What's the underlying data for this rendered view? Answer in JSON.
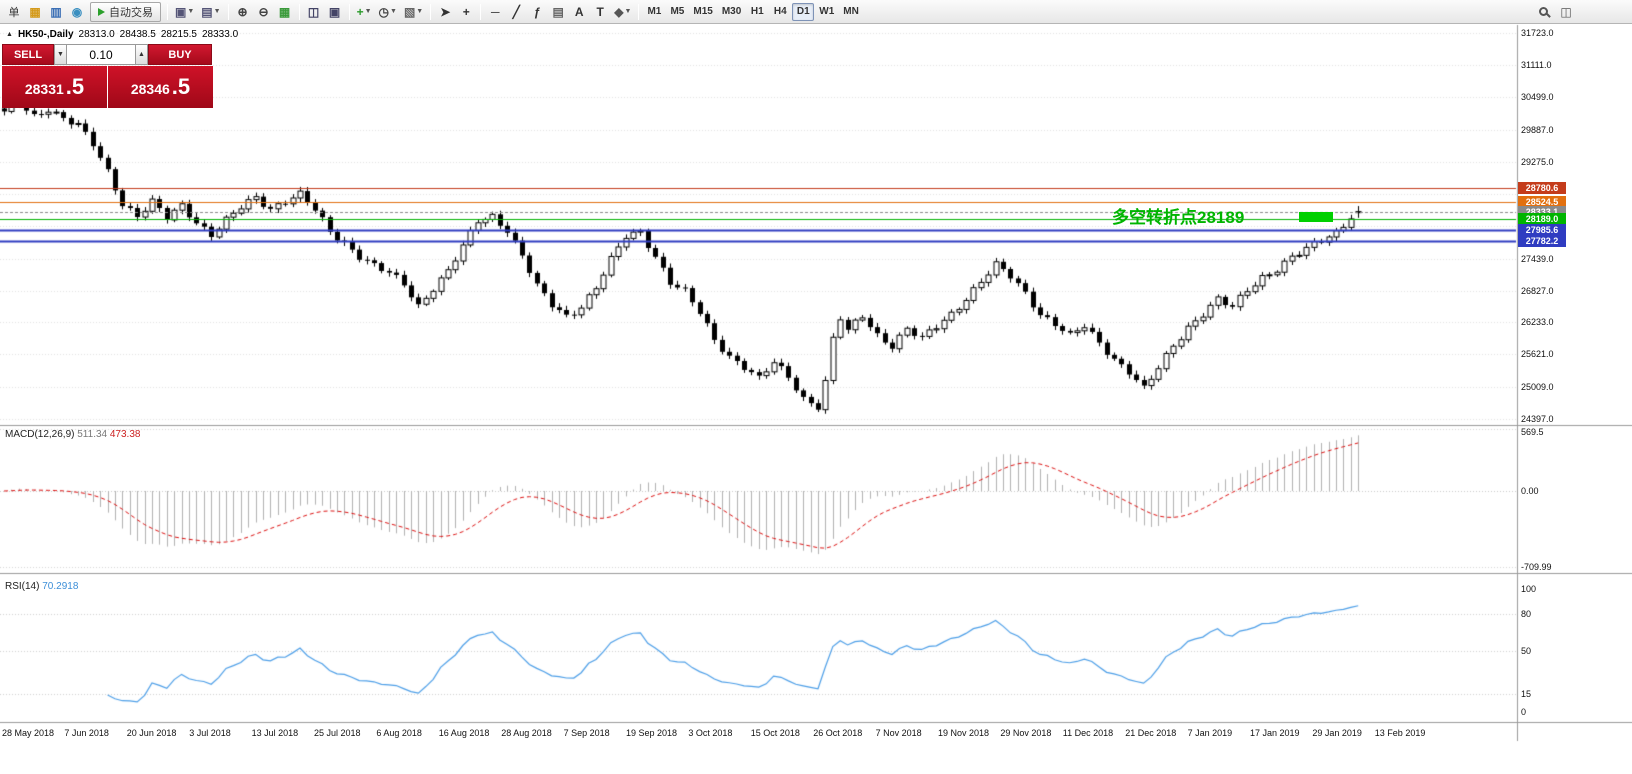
{
  "toolbar": {
    "order_button": {
      "label": "单"
    },
    "left_icons": [
      {
        "name": "accounts-icon",
        "glyph": "▦",
        "color": "#d49a1a"
      },
      {
        "name": "market-watch-icon",
        "glyph": "▥",
        "color": "#3b6fb5"
      },
      {
        "name": "refresh-icon",
        "glyph": "◉",
        "color": "#3a8fc0"
      }
    ],
    "autotrade": {
      "label": "自动交易"
    },
    "groups": [
      [
        {
          "name": "new-chart-icon",
          "glyph": "▣",
          "color": "#557",
          "dropdown": true
        },
        {
          "name": "profiles-icon",
          "glyph": "▤",
          "color": "#557",
          "dropdown": true
        }
      ],
      [
        {
          "name": "zoom-in-icon",
          "glyph": "⊕",
          "color": "#444"
        },
        {
          "name": "zoom-out-icon",
          "glyph": "⊖",
          "color": "#444"
        },
        {
          "name": "grid-icon",
          "glyph": "▦",
          "color": "#3a9a3a"
        }
      ],
      [
        {
          "name": "tile-windows-icon",
          "glyph": "◫",
          "color": "#446"
        },
        {
          "name": "cascade-windows-icon",
          "glyph": "▣",
          "color": "#446"
        }
      ],
      [
        {
          "name": "add-indicator-icon",
          "glyph": "+",
          "color": "#2a9a2a",
          "dropdown": true
        },
        {
          "name": "period-icon",
          "glyph": "◷",
          "color": "#444",
          "dropdown": true
        },
        {
          "name": "template-icon",
          "glyph": "▧",
          "color": "#666",
          "dropdown": true
        }
      ],
      [
        {
          "name": "cursor-icon",
          "glyph": "➤",
          "color": "#333"
        },
        {
          "name": "crosshair-icon",
          "glyph": "+",
          "color": "#333"
        }
      ],
      [
        {
          "name": "hline-tool-icon",
          "glyph": "─",
          "color": "#333"
        },
        {
          "name": "trendline-tool-icon",
          "glyph": "╱",
          "color": "#333"
        },
        {
          "name": "fibonacci-tool-icon",
          "glyph": "ƒ",
          "color": "#333"
        },
        {
          "name": "channel-tool-icon",
          "glyph": "▤",
          "color": "#666"
        },
        {
          "name": "text-tool-icon",
          "glyph": "A",
          "color": "#333"
        },
        {
          "name": "label-tool-icon",
          "glyph": "T",
          "color": "#333"
        },
        {
          "name": "shapes-tool-icon",
          "glyph": "◆",
          "color": "#555",
          "dropdown": true
        }
      ]
    ],
    "timeframes": [
      {
        "label": "M1"
      },
      {
        "label": "M5"
      },
      {
        "label": "M15"
      },
      {
        "label": "M30"
      },
      {
        "label": "H1"
      },
      {
        "label": "H4"
      },
      {
        "label": "D1",
        "active": true
      },
      {
        "label": "W1"
      },
      {
        "label": "MN"
      }
    ],
    "right_icons": [
      {
        "name": "search-icon",
        "type": "magnifier"
      },
      {
        "name": "data-window-icon",
        "glyph": "◫"
      }
    ]
  },
  "chart": {
    "title": "HK50-,Daily",
    "open": "28313.0",
    "high": "28438.5",
    "low": "28215.5",
    "close": "28333.0"
  },
  "one_click": {
    "sell_label": "SELL",
    "buy_label": "BUY",
    "volume": "0.10",
    "spinner_down": "▼",
    "spinner_up": "▲",
    "sell_main": "28331",
    "sell_frac": ".5",
    "buy_main": "28346",
    "buy_frac": ".5"
  },
  "macd": {
    "label": "MACD(12,26,9)",
    "value_main": "511.34",
    "value_signal": "473.38"
  },
  "rsi": {
    "label": "RSI(14)",
    "value": "70.2918"
  },
  "chart_data": {
    "type": "candlestick",
    "symbol": "HK50",
    "timeframe": "Daily",
    "ohlc_current": {
      "open": 28313.0,
      "high": 28438.5,
      "low": 28215.5,
      "close": 28333.0
    },
    "bars": 184,
    "close_anchors": [
      [
        0,
        30200
      ],
      [
        2,
        30400
      ],
      [
        4,
        30150
      ],
      [
        6,
        30300
      ],
      [
        8,
        30100
      ],
      [
        10,
        29950
      ],
      [
        12,
        29600
      ],
      [
        14,
        29100
      ],
      [
        16,
        28500
      ],
      [
        18,
        28250
      ],
      [
        20,
        28500
      ],
      [
        22,
        28200
      ],
      [
        24,
        28450
      ],
      [
        26,
        28150
      ],
      [
        28,
        27900
      ],
      [
        30,
        28150
      ],
      [
        32,
        28400
      ],
      [
        34,
        28600
      ],
      [
        36,
        28400
      ],
      [
        38,
        28550
      ],
      [
        40,
        28650
      ],
      [
        42,
        28350
      ],
      [
        44,
        27950
      ],
      [
        46,
        27750
      ],
      [
        48,
        27500
      ],
      [
        50,
        27300
      ],
      [
        52,
        27150
      ],
      [
        54,
        26950
      ],
      [
        56,
        26550
      ],
      [
        58,
        26900
      ],
      [
        60,
        27200
      ],
      [
        62,
        27650
      ],
      [
        64,
        28150
      ],
      [
        66,
        28250
      ],
      [
        68,
        28000
      ],
      [
        70,
        27500
      ],
      [
        72,
        26900
      ],
      [
        74,
        26550
      ],
      [
        76,
        26350
      ],
      [
        78,
        26550
      ],
      [
        80,
        26900
      ],
      [
        82,
        27400
      ],
      [
        84,
        27850
      ],
      [
        86,
        27950
      ],
      [
        88,
        27500
      ],
      [
        90,
        27000
      ],
      [
        92,
        26800
      ],
      [
        94,
        26400
      ],
      [
        96,
        25900
      ],
      [
        98,
        25600
      ],
      [
        100,
        25400
      ],
      [
        102,
        25150
      ],
      [
        104,
        25450
      ],
      [
        106,
        25200
      ],
      [
        108,
        24800
      ],
      [
        110,
        24650
      ],
      [
        111,
        25100
      ],
      [
        112,
        25900
      ],
      [
        113,
        26300
      ],
      [
        114,
        26050
      ],
      [
        116,
        26350
      ],
      [
        118,
        26000
      ],
      [
        120,
        25800
      ],
      [
        122,
        26100
      ],
      [
        124,
        25900
      ],
      [
        126,
        26150
      ],
      [
        128,
        26400
      ],
      [
        130,
        26700
      ],
      [
        132,
        27000
      ],
      [
        134,
        27300
      ],
      [
        136,
        27100
      ],
      [
        138,
        26800
      ],
      [
        140,
        26400
      ],
      [
        142,
        26200
      ],
      [
        144,
        25950
      ],
      [
        146,
        26150
      ],
      [
        148,
        25850
      ],
      [
        150,
        25550
      ],
      [
        152,
        25300
      ],
      [
        154,
        24950
      ],
      [
        156,
        25350
      ],
      [
        158,
        25800
      ],
      [
        160,
        26150
      ],
      [
        162,
        26400
      ],
      [
        164,
        26650
      ],
      [
        166,
        26500
      ],
      [
        168,
        26850
      ],
      [
        170,
        27100
      ],
      [
        172,
        27250
      ],
      [
        174,
        27450
      ],
      [
        176,
        27600
      ],
      [
        178,
        27800
      ],
      [
        180,
        27950
      ],
      [
        182,
        28250
      ],
      [
        183,
        28333
      ]
    ],
    "y_axis_labels": [
      {
        "price": 31723.0,
        "label": "31723.0"
      },
      {
        "price": 31111.0,
        "label": "31111.0"
      },
      {
        "price": 30499.0,
        "label": "30499.0"
      },
      {
        "price": 29887.0,
        "label": "29887.0"
      },
      {
        "price": 29275.0,
        "label": "29275.0"
      },
      {
        "price": 27439.0,
        "label": "27439.0"
      },
      {
        "price": 26827.0,
        "label": "26827.0"
      },
      {
        "price": 26233.0,
        "label": "26233.0"
      },
      {
        "price": 25621.0,
        "label": "25621.0"
      },
      {
        "price": 25009.0,
        "label": "25009.0"
      },
      {
        "price": 24397.0,
        "label": "24397.0"
      }
    ],
    "grid_prices": [
      31723,
      31111,
      30499,
      29887,
      29275,
      28663,
      28051,
      27439,
      26827,
      26233,
      25621,
      25009,
      24397
    ],
    "levels": [
      {
        "price": 28780.6,
        "label": "28780.6",
        "color": "#c43c1b",
        "width": 1,
        "style": "solid"
      },
      {
        "price": 28524.5,
        "label": "28524.5",
        "color": "#e2700f",
        "width": 1,
        "style": "solid"
      },
      {
        "price": 28333.1,
        "label": "28333.1",
        "color": "#8a8a8a",
        "width": 1,
        "style": "dash"
      },
      {
        "price": 28189.0,
        "label": "28189.0",
        "color": "#00b400",
        "width": 1,
        "style": "solid"
      },
      {
        "price": 27985.6,
        "label": "27985.6",
        "color": "#2f3cc1",
        "width": 2,
        "style": "solid"
      },
      {
        "price": 27782.2,
        "label": "27782.2",
        "color": "#2f3cc1",
        "width": 2,
        "style": "solid"
      }
    ],
    "annotation": {
      "text": "多空转折点28189",
      "price": 28189,
      "color": "#00b400"
    },
    "x_axis_dates": [
      "28 May 2018",
      "7 Jun 2018",
      "20 Jun 2018",
      "3 Jul 2018",
      "13 Jul 2018",
      "25 Jul 2018",
      "6 Aug 2018",
      "16 Aug 2018",
      "28 Aug 2018",
      "7 Sep 2018",
      "19 Sep 2018",
      "3 Oct 2018",
      "15 Oct 2018",
      "26 Oct 2018",
      "7 Nov 2018",
      "19 Nov 2018",
      "29 Nov 2018",
      "11 Dec 2018",
      "21 Dec 2018",
      "7 Jan 2019",
      "17 Jan 2019",
      "29 Jan 2019",
      "13 Feb 2019"
    ],
    "indicators": [
      {
        "name": "MACD",
        "params": "12,26,9",
        "values": [
          511.34,
          473.38
        ],
        "axis": [
          {
            "value": 569.5,
            "label": "569.5"
          },
          {
            "value": 0,
            "label": "0.00"
          },
          {
            "value": -709.99,
            "label": "-709.99"
          }
        ]
      },
      {
        "name": "RSI",
        "params": "14",
        "value": 70.2918,
        "axis": [
          {
            "value": 100,
            "label": "100"
          },
          {
            "value": 80,
            "label": "80"
          },
          {
            "value": 50,
            "label": "50"
          },
          {
            "value": 15,
            "label": "15"
          },
          {
            "value": 0,
            "label": "0"
          }
        ],
        "grid_levels": [
          80,
          50,
          15
        ]
      }
    ]
  }
}
